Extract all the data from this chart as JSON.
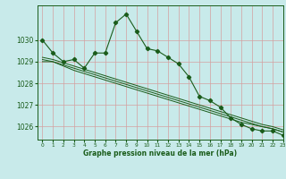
{
  "title": "Graphe pression niveau de la mer (hPa)",
  "background_color": "#c8eaea",
  "grid_color": "#d4a0a0",
  "line_color": "#1a5c1a",
  "xlim": [
    -0.5,
    23
  ],
  "ylim": [
    1025.4,
    1031.6
  ],
  "yticks": [
    1026,
    1027,
    1028,
    1029,
    1030
  ],
  "xtick_labels": [
    "0",
    "1",
    "2",
    "3",
    "4",
    "5",
    "6",
    "7",
    "8",
    "9",
    "10",
    "11",
    "12",
    "13",
    "14",
    "15",
    "16",
    "17",
    "18",
    "19",
    "20",
    "21",
    "22",
    "23"
  ],
  "xtick_pos": [
    0,
    1,
    2,
    3,
    4,
    5,
    6,
    7,
    8,
    9,
    10,
    11,
    12,
    13,
    14,
    15,
    16,
    17,
    18,
    19,
    20,
    21,
    22,
    23
  ],
  "series": [
    [
      1030.0,
      1029.4,
      1029.0,
      1029.1,
      1028.7,
      1029.4,
      1029.4,
      1030.8,
      1031.2,
      1030.4,
      1029.6,
      1029.5,
      1029.2,
      1028.9,
      1028.3,
      1027.4,
      1027.2,
      1026.9,
      1026.4,
      1026.1,
      1025.9,
      1025.8,
      1025.8,
      1025.6
    ],
    [
      1029.0,
      1029.0,
      1028.85,
      1028.7,
      1028.55,
      1028.4,
      1028.25,
      1028.1,
      1027.95,
      1027.8,
      1027.65,
      1027.5,
      1027.35,
      1027.2,
      1027.05,
      1026.9,
      1026.75,
      1026.6,
      1026.45,
      1026.3,
      1026.15,
      1026.0,
      1025.9,
      1025.75
    ],
    [
      1029.1,
      1029.0,
      1028.8,
      1028.6,
      1028.45,
      1028.3,
      1028.15,
      1028.0,
      1027.85,
      1027.7,
      1027.55,
      1027.4,
      1027.25,
      1027.1,
      1026.95,
      1026.8,
      1026.65,
      1026.5,
      1026.35,
      1026.2,
      1026.1,
      1026.0,
      1025.9,
      1025.75
    ],
    [
      1029.2,
      1029.1,
      1028.95,
      1028.8,
      1028.65,
      1028.5,
      1028.35,
      1028.2,
      1028.05,
      1027.9,
      1027.75,
      1027.6,
      1027.45,
      1027.3,
      1027.15,
      1027.0,
      1026.85,
      1026.7,
      1026.55,
      1026.4,
      1026.25,
      1026.1,
      1026.0,
      1025.85
    ]
  ]
}
